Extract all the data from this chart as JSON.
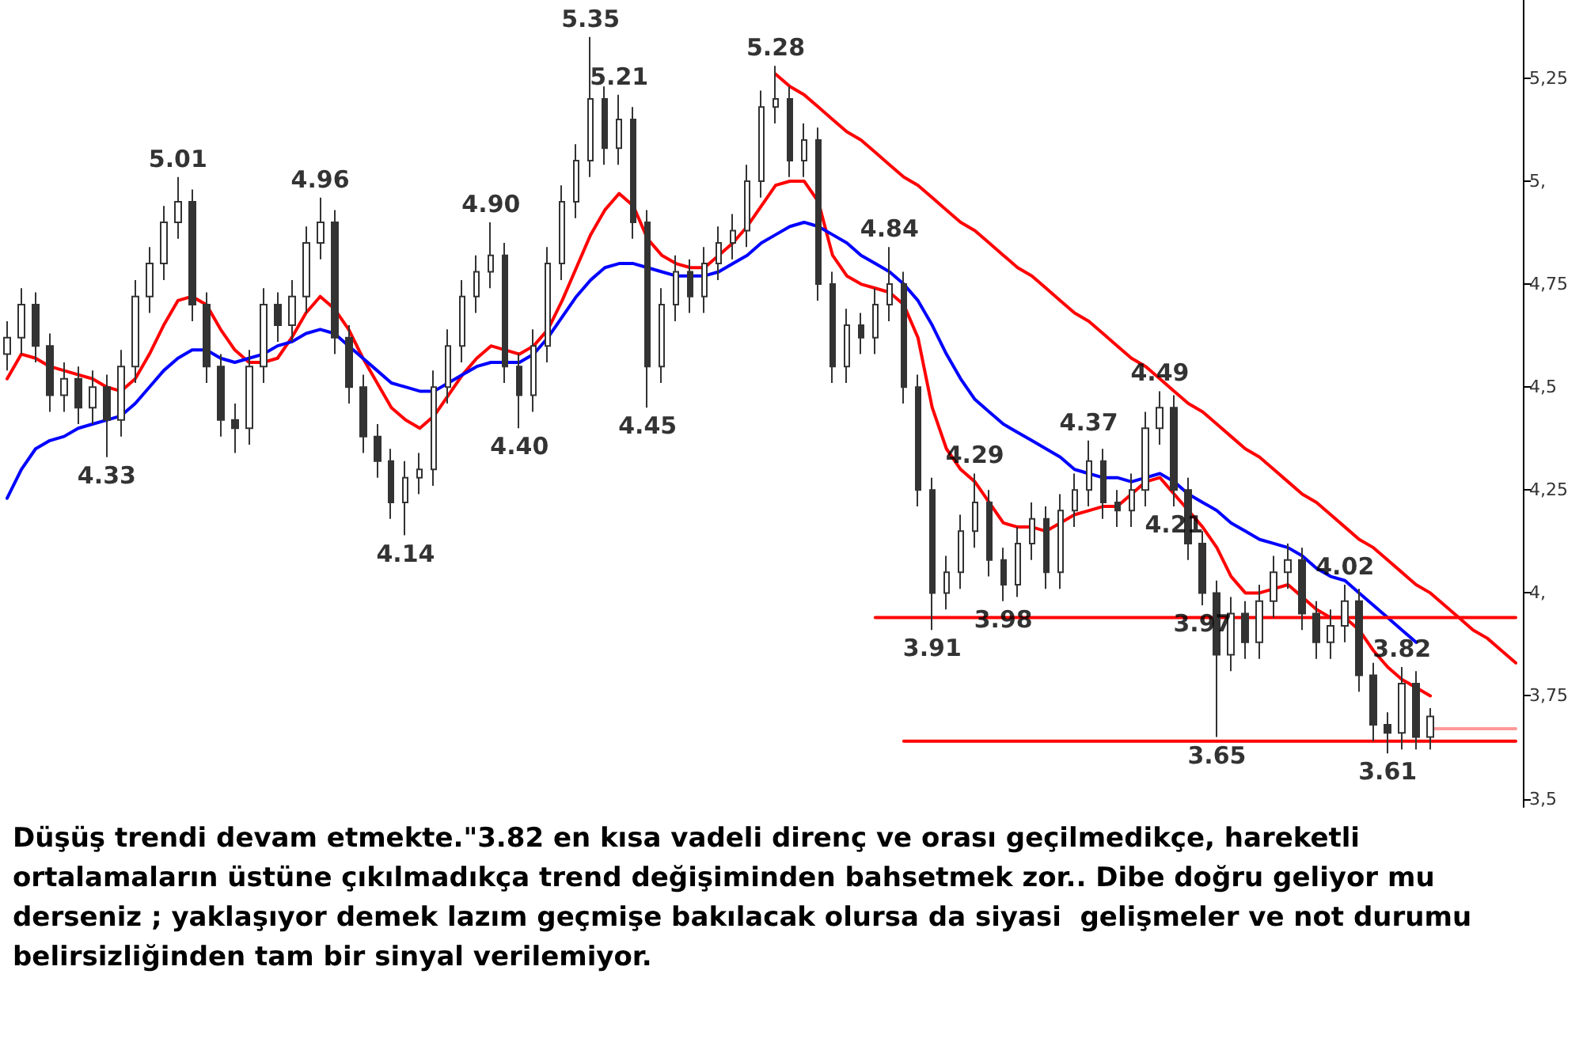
{
  "chart_data": {
    "type": "candlestick",
    "color": "#333333",
    "categories": [
      null,
      null,
      null,
      null,
      null,
      null,
      null,
      null,
      null,
      null,
      null,
      null,
      null,
      null,
      null,
      null,
      null,
      null,
      null,
      null,
      null,
      null,
      null,
      null,
      null,
      null,
      null,
      null,
      null,
      null,
      null,
      null,
      null,
      null,
      null,
      null,
      null,
      null,
      null,
      null,
      null,
      null,
      null,
      null,
      null,
      null,
      null,
      null,
      null,
      null,
      null,
      null,
      null,
      null,
      null,
      null,
      null,
      null,
      null,
      null,
      null,
      null,
      null,
      null,
      null,
      null,
      null,
      null,
      null,
      null,
      null,
      null,
      null,
      null,
      null,
      null,
      null,
      null,
      null,
      null,
      null,
      null,
      null,
      null,
      null,
      null,
      null,
      null,
      null,
      null,
      null,
      null,
      null,
      null,
      null,
      null,
      null,
      null,
      null,
      null,
      null,
      null,
      null,
      null,
      null,
      null,
      null
    ],
    "ohlc": [
      [
        4.58,
        4.66,
        4.54,
        4.62
      ],
      [
        4.62,
        4.74,
        4.58,
        4.7
      ],
      [
        4.7,
        4.73,
        4.56,
        4.6
      ],
      [
        4.6,
        4.63,
        4.44,
        4.48
      ],
      [
        4.48,
        4.56,
        4.44,
        4.52
      ],
      [
        4.52,
        4.55,
        4.41,
        4.45
      ],
      [
        4.45,
        4.54,
        4.41,
        4.5
      ],
      [
        4.5,
        4.53,
        4.33,
        4.42
      ],
      [
        4.42,
        4.59,
        4.38,
        4.55
      ],
      [
        4.55,
        4.76,
        4.51,
        4.72
      ],
      [
        4.72,
        4.84,
        4.68,
        4.8
      ],
      [
        4.8,
        4.94,
        4.76,
        4.9
      ],
      [
        4.9,
        5.01,
        4.86,
        4.95
      ],
      [
        4.95,
        4.98,
        4.66,
        4.7
      ],
      [
        4.7,
        4.73,
        4.51,
        4.55
      ],
      [
        4.55,
        4.58,
        4.38,
        4.42
      ],
      [
        4.42,
        4.46,
        4.34,
        4.4
      ],
      [
        4.4,
        4.59,
        4.36,
        4.55
      ],
      [
        4.55,
        4.74,
        4.51,
        4.7
      ],
      [
        4.7,
        4.73,
        4.61,
        4.65
      ],
      [
        4.65,
        4.76,
        4.61,
        4.72
      ],
      [
        4.72,
        4.89,
        4.68,
        4.85
      ],
      [
        4.85,
        4.96,
        4.81,
        4.9
      ],
      [
        4.9,
        4.93,
        4.58,
        4.62
      ],
      [
        4.62,
        4.65,
        4.46,
        4.5
      ],
      [
        4.5,
        4.53,
        4.34,
        4.38
      ],
      [
        4.38,
        4.41,
        4.28,
        4.32
      ],
      [
        4.32,
        4.35,
        4.18,
        4.22
      ],
      [
        4.22,
        4.32,
        4.14,
        4.28
      ],
      [
        4.28,
        4.34,
        4.24,
        4.3
      ],
      [
        4.3,
        4.54,
        4.26,
        4.5
      ],
      [
        4.5,
        4.64,
        4.46,
        4.6
      ],
      [
        4.6,
        4.76,
        4.56,
        4.72
      ],
      [
        4.72,
        4.82,
        4.68,
        4.78
      ],
      [
        4.78,
        4.9,
        4.74,
        4.82
      ],
      [
        4.82,
        4.85,
        4.51,
        4.55
      ],
      [
        4.55,
        4.58,
        4.4,
        4.48
      ],
      [
        4.48,
        4.64,
        4.44,
        4.6
      ],
      [
        4.6,
        4.84,
        4.56,
        4.8
      ],
      [
        4.8,
        4.99,
        4.76,
        4.95
      ],
      [
        4.95,
        5.09,
        4.91,
        5.05
      ],
      [
        5.05,
        5.35,
        5.01,
        5.2
      ],
      [
        5.2,
        5.23,
        5.04,
        5.08
      ],
      [
        5.08,
        5.21,
        5.04,
        5.15
      ],
      [
        5.15,
        5.18,
        4.86,
        4.9
      ],
      [
        4.9,
        4.93,
        4.45,
        4.55
      ],
      [
        4.55,
        4.74,
        4.51,
        4.7
      ],
      [
        4.7,
        4.82,
        4.66,
        4.78
      ],
      [
        4.78,
        4.81,
        4.68,
        4.72
      ],
      [
        4.72,
        4.84,
        4.68,
        4.8
      ],
      [
        4.8,
        4.89,
        4.76,
        4.85
      ],
      [
        4.85,
        4.92,
        4.81,
        4.88
      ],
      [
        4.88,
        5.04,
        4.84,
        5.0
      ],
      [
        5.0,
        5.22,
        4.96,
        5.18
      ],
      [
        5.18,
        5.28,
        5.14,
        5.2
      ],
      [
        5.2,
        5.23,
        5.01,
        5.05
      ],
      [
        5.05,
        5.14,
        5.01,
        5.1
      ],
      [
        5.1,
        5.13,
        4.71,
        4.75
      ],
      [
        4.75,
        4.78,
        4.51,
        4.55
      ],
      [
        4.55,
        4.69,
        4.51,
        4.65
      ],
      [
        4.65,
        4.68,
        4.58,
        4.62
      ],
      [
        4.62,
        4.74,
        4.58,
        4.7
      ],
      [
        4.7,
        4.84,
        4.66,
        4.75
      ],
      [
        4.75,
        4.78,
        4.46,
        4.5
      ],
      [
        4.5,
        4.53,
        4.21,
        4.25
      ],
      [
        4.25,
        4.28,
        3.91,
        4.0
      ],
      [
        4.0,
        4.09,
        3.96,
        4.05
      ],
      [
        4.05,
        4.19,
        4.01,
        4.15
      ],
      [
        4.15,
        4.29,
        4.11,
        4.22
      ],
      [
        4.22,
        4.25,
        4.04,
        4.08
      ],
      [
        4.08,
        4.11,
        3.98,
        4.02
      ],
      [
        4.02,
        4.16,
        3.99,
        4.12
      ],
      [
        4.12,
        4.22,
        4.08,
        4.18
      ],
      [
        4.18,
        4.21,
        4.01,
        4.05
      ],
      [
        4.05,
        4.24,
        4.01,
        4.2
      ],
      [
        4.2,
        4.29,
        4.16,
        4.25
      ],
      [
        4.25,
        4.37,
        4.21,
        4.32
      ],
      [
        4.32,
        4.35,
        4.18,
        4.22
      ],
      [
        4.22,
        4.25,
        4.16,
        4.2
      ],
      [
        4.2,
        4.29,
        4.16,
        4.25
      ],
      [
        4.25,
        4.44,
        4.21,
        4.4
      ],
      [
        4.4,
        4.49,
        4.36,
        4.45
      ],
      [
        4.45,
        4.48,
        4.21,
        4.25
      ],
      [
        4.25,
        4.28,
        4.08,
        4.12
      ],
      [
        4.12,
        4.15,
        3.97,
        4.0
      ],
      [
        4.0,
        4.03,
        3.65,
        3.85
      ],
      [
        3.85,
        3.99,
        3.81,
        3.95
      ],
      [
        3.95,
        3.98,
        3.84,
        3.88
      ],
      [
        3.88,
        4.02,
        3.84,
        3.98
      ],
      [
        3.98,
        4.09,
        3.94,
        4.05
      ],
      [
        4.05,
        4.12,
        4.01,
        4.08
      ],
      [
        4.08,
        4.11,
        3.91,
        3.95
      ],
      [
        3.95,
        3.98,
        3.84,
        3.88
      ],
      [
        3.88,
        3.96,
        3.84,
        3.92
      ],
      [
        3.92,
        4.02,
        3.88,
        3.98
      ],
      [
        3.98,
        4.01,
        3.76,
        3.8
      ],
      [
        3.8,
        3.83,
        3.64,
        3.68
      ],
      [
        3.68,
        3.71,
        3.61,
        3.66
      ],
      [
        3.66,
        3.82,
        3.62,
        3.78
      ],
      [
        3.78,
        3.81,
        3.62,
        3.65
      ],
      [
        3.65,
        3.72,
        3.62,
        3.7
      ],
      null,
      null,
      null,
      null,
      null,
      null
    ],
    "value_labels": [
      null,
      null,
      null,
      null,
      null,
      null,
      null,
      "4.33",
      null,
      null,
      null,
      null,
      "5.01",
      null,
      null,
      null,
      null,
      null,
      null,
      null,
      null,
      null,
      "4.96",
      null,
      null,
      null,
      null,
      null,
      "4.14",
      null,
      null,
      null,
      null,
      null,
      "4.90",
      null,
      "4.40",
      null,
      null,
      null,
      null,
      "5.35",
      null,
      "5.21",
      null,
      "4.45",
      null,
      null,
      null,
      null,
      null,
      null,
      null,
      null,
      "5.28",
      null,
      null,
      null,
      null,
      null,
      null,
      null,
      "4.84",
      null,
      null,
      "3.91",
      null,
      null,
      "4.29",
      null,
      "3.98",
      null,
      null,
      null,
      null,
      null,
      "4.37",
      null,
      null,
      null,
      null,
      "4.49",
      "4.21",
      null,
      "3.97",
      "3.65",
      null,
      null,
      null,
      null,
      null,
      null,
      null,
      null,
      "4.02",
      null,
      null,
      "3.61",
      "3.82",
      null,
      null,
      null,
      null,
      null,
      null,
      null,
      null
    ],
    "series": [
      {
        "type": "line",
        "color": "#ff0000",
        "values": [
          4.52,
          4.58,
          4.57,
          4.55,
          4.54,
          4.53,
          4.52,
          4.5,
          4.49,
          4.52,
          4.58,
          4.65,
          4.71,
          4.72,
          4.7,
          4.64,
          4.59,
          4.56,
          4.56,
          4.57,
          4.62,
          4.68,
          4.72,
          4.69,
          4.64,
          4.57,
          4.51,
          4.45,
          4.42,
          4.4,
          4.43,
          4.48,
          4.53,
          4.57,
          4.6,
          4.59,
          4.58,
          4.6,
          4.64,
          4.71,
          4.79,
          4.87,
          4.93,
          4.97,
          4.94,
          4.86,
          4.82,
          4.8,
          4.79,
          4.79,
          4.82,
          4.85,
          4.89,
          4.94,
          4.99,
          5.0,
          5.0,
          4.95,
          4.82,
          4.77,
          4.75,
          4.74,
          4.73,
          4.7,
          4.62,
          4.45,
          4.35,
          4.3,
          4.27,
          4.22,
          4.17,
          4.16,
          4.16,
          4.15,
          4.17,
          4.19,
          4.2,
          4.21,
          4.21,
          4.24,
          4.27,
          4.28,
          4.24,
          4.2,
          4.16,
          4.11,
          4.04,
          4.0,
          4.0,
          4.01,
          4.02,
          3.99,
          3.96,
          3.94,
          3.94,
          3.91,
          3.86,
          3.82,
          3.79,
          3.77,
          3.75,
          null,
          null,
          null,
          null,
          null,
          null
        ]
      },
      {
        "type": "line",
        "color": "#0000ff",
        "values": [
          4.23,
          4.3,
          4.35,
          4.37,
          4.38,
          4.4,
          4.41,
          4.42,
          4.43,
          4.46,
          4.5,
          4.54,
          4.57,
          4.59,
          4.59,
          4.57,
          4.56,
          4.57,
          4.58,
          4.6,
          4.61,
          4.63,
          4.64,
          4.63,
          4.6,
          4.57,
          4.54,
          4.51,
          4.5,
          4.49,
          4.49,
          4.51,
          4.53,
          4.55,
          4.56,
          4.56,
          4.56,
          4.58,
          4.62,
          4.67,
          4.72,
          4.76,
          4.79,
          4.8,
          4.8,
          4.79,
          4.78,
          4.77,
          4.77,
          4.77,
          4.78,
          4.8,
          4.82,
          4.85,
          4.87,
          4.89,
          4.9,
          4.89,
          4.87,
          4.85,
          4.82,
          4.8,
          4.78,
          4.75,
          4.71,
          4.65,
          4.58,
          4.52,
          4.47,
          4.44,
          4.41,
          4.39,
          4.37,
          4.35,
          4.33,
          4.3,
          4.29,
          4.28,
          4.28,
          4.27,
          4.28,
          4.29,
          4.27,
          4.24,
          4.22,
          4.2,
          4.17,
          4.15,
          4.13,
          4.12,
          4.11,
          4.09,
          4.06,
          4.04,
          4.03,
          4.0,
          3.97,
          3.94,
          3.91,
          3.88,
          null,
          null,
          null,
          null,
          null,
          null,
          null
        ]
      },
      {
        "type": "line",
        "color": "#ff0000",
        "values": [
          null,
          null,
          null,
          null,
          null,
          null,
          null,
          null,
          null,
          null,
          null,
          null,
          null,
          null,
          null,
          null,
          null,
          null,
          null,
          null,
          null,
          null,
          null,
          null,
          null,
          null,
          null,
          null,
          null,
          null,
          null,
          null,
          null,
          null,
          null,
          null,
          null,
          null,
          null,
          null,
          null,
          null,
          null,
          null,
          null,
          null,
          null,
          null,
          null,
          null,
          null,
          null,
          null,
          null,
          5.26,
          5.23,
          5.21,
          5.18,
          5.15,
          5.12,
          5.1,
          5.07,
          5.04,
          5.01,
          4.99,
          4.96,
          4.93,
          4.9,
          4.88,
          4.85,
          4.82,
          4.79,
          4.77,
          4.74,
          4.71,
          4.68,
          4.66,
          4.63,
          4.6,
          4.57,
          4.55,
          4.52,
          4.49,
          4.46,
          4.44,
          4.41,
          4.38,
          4.35,
          4.33,
          4.3,
          4.27,
          4.24,
          4.22,
          4.19,
          4.16,
          4.13,
          4.11,
          4.08,
          4.05,
          4.02,
          4.0,
          3.97,
          3.94,
          3.91,
          3.89,
          3.86,
          3.83
        ]
      },
      {
        "type": "line",
        "color": "#ff0000",
        "values": [
          null,
          null,
          null,
          null,
          null,
          null,
          null,
          null,
          null,
          null,
          null,
          null,
          null,
          null,
          null,
          null,
          null,
          null,
          null,
          null,
          null,
          null,
          null,
          null,
          null,
          null,
          null,
          null,
          null,
          null,
          null,
          null,
          null,
          null,
          null,
          null,
          null,
          null,
          null,
          null,
          null,
          null,
          null,
          null,
          null,
          null,
          null,
          null,
          null,
          null,
          null,
          null,
          null,
          null,
          null,
          null,
          null,
          null,
          null,
          null,
          null,
          3.94,
          3.94,
          3.94,
          3.94,
          3.94,
          3.94,
          3.94,
          3.94,
          3.94,
          3.94,
          3.94,
          3.94,
          3.94,
          3.94,
          3.94,
          3.94,
          3.94,
          3.94,
          3.94,
          3.94,
          3.94,
          3.94,
          3.94,
          3.94,
          3.94,
          3.94,
          3.94,
          3.94,
          3.94,
          3.94,
          3.94,
          3.94,
          3.94,
          3.94,
          3.94,
          3.94,
          3.94,
          3.94,
          3.94,
          3.94,
          3.94,
          3.94,
          3.94,
          3.94,
          3.94,
          3.94
        ]
      },
      {
        "type": "line",
        "color": "#ff0000",
        "values": [
          null,
          null,
          null,
          null,
          null,
          null,
          null,
          null,
          null,
          null,
          null,
          null,
          null,
          null,
          null,
          null,
          null,
          null,
          null,
          null,
          null,
          null,
          null,
          null,
          null,
          null,
          null,
          null,
          null,
          null,
          null,
          null,
          null,
          null,
          null,
          null,
          null,
          null,
          null,
          null,
          null,
          null,
          null,
          null,
          null,
          null,
          null,
          null,
          null,
          null,
          null,
          null,
          null,
          null,
          null,
          null,
          null,
          null,
          null,
          null,
          null,
          null,
          null,
          3.64,
          3.64,
          3.64,
          3.64,
          3.64,
          3.64,
          3.64,
          3.64,
          3.64,
          3.64,
          3.64,
          3.64,
          3.64,
          3.64,
          3.64,
          3.64,
          3.64,
          3.64,
          3.64,
          3.64,
          3.64,
          3.64,
          3.64,
          3.64,
          3.64,
          3.64,
          3.64,
          3.64,
          3.64,
          3.64,
          3.64,
          3.64,
          3.64,
          3.64,
          3.64,
          3.64,
          3.64,
          3.64,
          3.64,
          3.64,
          3.64,
          3.64,
          3.64,
          3.64
        ]
      },
      {
        "type": "line",
        "color": "#ff9999",
        "values": [
          null,
          null,
          null,
          null,
          null,
          null,
          null,
          null,
          null,
          null,
          null,
          null,
          null,
          null,
          null,
          null,
          null,
          null,
          null,
          null,
          null,
          null,
          null,
          null,
          null,
          null,
          null,
          null,
          null,
          null,
          null,
          null,
          null,
          null,
          null,
          null,
          null,
          null,
          null,
          null,
          null,
          null,
          null,
          null,
          null,
          null,
          null,
          null,
          null,
          null,
          null,
          null,
          null,
          null,
          null,
          null,
          null,
          null,
          null,
          null,
          null,
          null,
          null,
          null,
          null,
          null,
          null,
          null,
          null,
          null,
          null,
          null,
          null,
          null,
          null,
          null,
          null,
          null,
          null,
          null,
          null,
          null,
          null,
          null,
          null,
          null,
          null,
          null,
          null,
          null,
          null,
          null,
          null,
          null,
          null,
          null,
          null,
          null,
          null,
          null,
          3.67,
          3.67,
          3.67,
          3.67,
          3.67,
          3.67,
          3.67
        ]
      }
    ],
    "ylim": [
      3.48,
      5.44
    ],
    "yticks": [
      {
        "value": 3.5,
        "label": "3,5"
      },
      {
        "value": 3.75,
        "label": "3,75"
      },
      {
        "value": 4,
        "label": "4,"
      },
      {
        "value": 4.25,
        "label": "4,25"
      },
      {
        "value": 4.5,
        "label": "4,5"
      },
      {
        "value": 4.75,
        "label": "4,75"
      },
      {
        "value": 5,
        "label": "5,"
      },
      {
        "value": 5.25,
        "label": "5,25"
      }
    ],
    "grid": false,
    "line_style": "solid",
    "tick_labels": "y",
    "annotations": [
      "Düşüş trendi devam etmekte.\"3.82 en kısa vadeli direnç ve orası geçilmedikçe, hareketli ortalamaların üstüne çıkılmadıkça trend değişiminden bahsetmek zor.. Dibe doğru geliyor mu derseniz ; yaklaşıyor demek lazım geçmişe bakılacak olursa da siyasi  gelişmeler ve not durumu belirsizliğinden tam bir sinyal verilemiyor."
    ]
  }
}
